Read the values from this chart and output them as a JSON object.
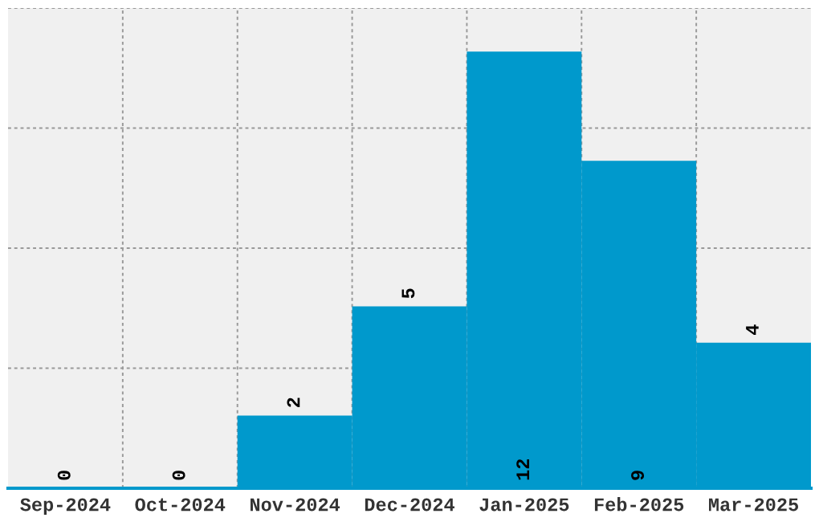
{
  "chart_data": {
    "type": "bar",
    "categories": [
      "Sep-2024",
      "Oct-2024",
      "Nov-2024",
      "Dec-2024",
      "Jan-2025",
      "Feb-2025",
      "Mar-2025"
    ],
    "values": [
      0,
      0,
      2,
      5,
      12,
      9,
      4
    ],
    "color": "#0099cc",
    "ylim": [
      0,
      13.2
    ],
    "yticks": [
      {
        "value": 3.3,
        "label": null
      },
      {
        "value": 6.6,
        "label": null
      },
      {
        "value": 9.9,
        "label": null
      },
      {
        "value": 13.2,
        "label": null
      }
    ],
    "data_labels": true,
    "grid": true
  }
}
